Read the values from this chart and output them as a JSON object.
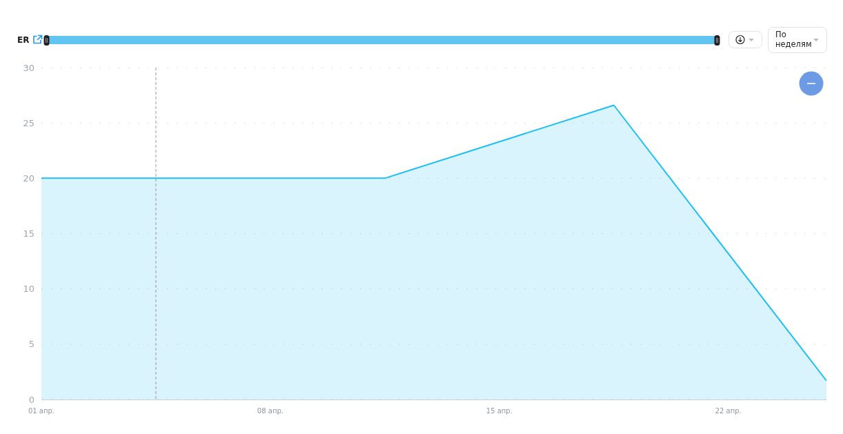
{
  "chart_data": {
    "type": "area",
    "title": "ER",
    "annotations": [
      "По неделям"
    ],
    "x": [
      "--04-01",
      "--04-11T12:00",
      "--04-18T12:00",
      "--04-25"
    ],
    "series": [
      {
        "color": "#1ebff6",
        "values": [
          20,
          20,
          26.6,
          1.7
        ]
      }
    ],
    "xlim": [
      "--04-01",
      "--04-25"
    ],
    "xticks": [
      {
        "value": "--04-01",
        "label": "01 апр."
      },
      {
        "value": "--04-08",
        "label": "08 апр."
      },
      {
        "value": "--04-15",
        "label": "15 апр."
      },
      {
        "value": "--04-22",
        "label": "22 апр."
      }
    ],
    "ylim": [
      0,
      30
    ],
    "yticks": [
      0,
      5,
      10,
      15,
      20,
      25,
      30
    ],
    "grid": "y",
    "ref_lines": [
      {
        "axis": "x",
        "value": "--04-04T12:00",
        "color": "#8f979f",
        "line_style": "dashed"
      }
    ]
  }
}
